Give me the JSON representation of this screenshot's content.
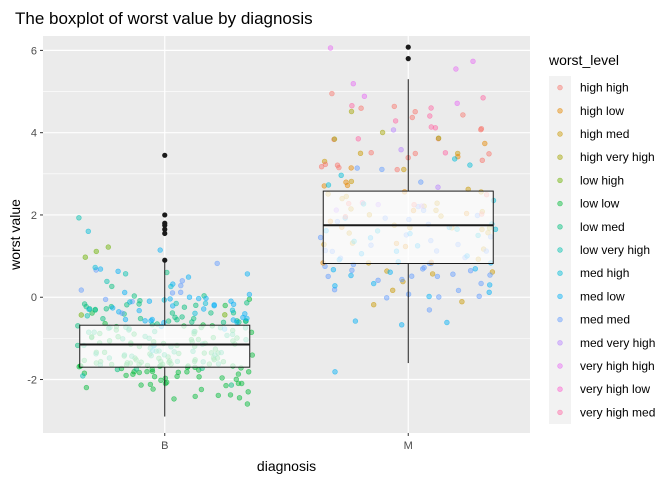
{
  "chart_data": {
    "type": "boxplot",
    "title": "The boxplot of worst value by diagnosis",
    "xlabel": "diagnosis",
    "ylabel": "worst value",
    "categories": [
      "B",
      "M"
    ],
    "ylim": [
      -3.3,
      6.35
    ],
    "yticks": [
      -2,
      0,
      2,
      4,
      6
    ],
    "grid": true,
    "legend": {
      "title": "worst_level",
      "position": "right",
      "entries": [
        {
          "label": "high high",
          "color": "#F8766D"
        },
        {
          "label": "high low",
          "color": "#E58700"
        },
        {
          "label": "high med",
          "color": "#C99800"
        },
        {
          "label": "high very high",
          "color": "#A3A500"
        },
        {
          "label": "low high",
          "color": "#6BB100"
        },
        {
          "label": "low low",
          "color": "#00BA38"
        },
        {
          "label": "low med",
          "color": "#00BF7D"
        },
        {
          "label": "low very high",
          "color": "#00C0AF"
        },
        {
          "label": "med high",
          "color": "#00BCD8"
        },
        {
          "label": "med low",
          "color": "#00B0F6"
        },
        {
          "label": "med med",
          "color": "#619CFF"
        },
        {
          "label": "med very high",
          "color": "#B983FF"
        },
        {
          "label": "very high high",
          "color": "#E76BF3"
        },
        {
          "label": "very high low",
          "color": "#FD61D1"
        },
        {
          "label": "very high med",
          "color": "#FF67A4"
        }
      ]
    },
    "boxes": [
      {
        "category": "B",
        "q1": -1.7,
        "median": -1.15,
        "q3": -0.68,
        "whisker_low": -2.9,
        "whisker_high": 0.85,
        "outliers": [
          3.45,
          2.0,
          1.8,
          1.75,
          1.65,
          1.55,
          0.9
        ]
      },
      {
        "category": "M",
        "q1": 0.82,
        "median": 1.75,
        "q3": 2.58,
        "whisker_low": -1.6,
        "whisker_high": 5.3,
        "outliers": [
          6.08,
          5.8
        ]
      }
    ],
    "jitter_groups": [
      {
        "category": "B",
        "level": "low low",
        "n": 120,
        "mean": -1.5,
        "sd": 0.55
      },
      {
        "category": "B",
        "level": "low med",
        "n": 80,
        "mean": -0.8,
        "sd": 0.55
      },
      {
        "category": "B",
        "level": "med low",
        "n": 35,
        "mean": -0.2,
        "sd": 0.45
      },
      {
        "category": "B",
        "level": "med med",
        "n": 10,
        "mean": 0.3,
        "sd": 0.4
      },
      {
        "category": "B",
        "level": "low very high",
        "n": 6,
        "mean": 0.2,
        "sd": 1.0
      },
      {
        "category": "B",
        "level": "low high",
        "n": 5,
        "mean": 0.5,
        "sd": 0.9
      },
      {
        "category": "B",
        "level": "med high",
        "n": 10,
        "mean": -0.3,
        "sd": 0.5
      },
      {
        "category": "M",
        "level": "high med",
        "n": 35,
        "mean": 2.0,
        "sd": 0.9
      },
      {
        "category": "M",
        "level": "med med",
        "n": 45,
        "mean": 1.3,
        "sd": 0.9
      },
      {
        "category": "M",
        "level": "med low",
        "n": 25,
        "mean": 0.9,
        "sd": 0.8
      },
      {
        "category": "M",
        "level": "high high",
        "n": 25,
        "mean": 3.5,
        "sd": 0.7
      },
      {
        "category": "M",
        "level": "very high med",
        "n": 10,
        "mean": 4.3,
        "sd": 0.6
      },
      {
        "category": "M",
        "level": "very high high",
        "n": 6,
        "mean": 5.0,
        "sd": 0.6
      },
      {
        "category": "M",
        "level": "high low",
        "n": 15,
        "mean": 2.3,
        "sd": 0.8
      },
      {
        "category": "M",
        "level": "med high",
        "n": 12,
        "mean": 1.8,
        "sd": 0.8
      },
      {
        "category": "M",
        "level": "med very high",
        "n": 6,
        "mean": 3.0,
        "sd": 1.0
      },
      {
        "category": "M",
        "level": "high very high",
        "n": 5,
        "mean": 2.8,
        "sd": 1.0
      }
    ]
  }
}
